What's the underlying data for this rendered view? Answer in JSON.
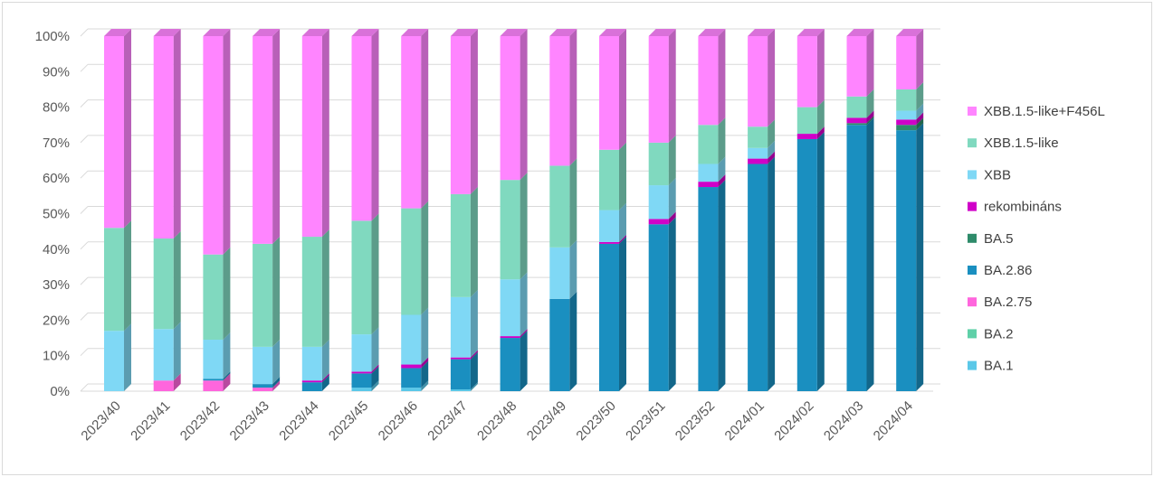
{
  "chart_data": {
    "type": "bar",
    "stacked": true,
    "percent_stacked": true,
    "style": "3d-column",
    "categories": [
      "2023/40",
      "2023/41",
      "2023/42",
      "2023/43",
      "2023/44",
      "2023/45",
      "2023/46",
      "2023/47",
      "2023/48",
      "2023/49",
      "2023/50",
      "2023/51",
      "2023/52",
      "2024/01",
      "2024/02",
      "2024/03",
      "2024/04"
    ],
    "y_ticks": [
      "0%",
      "10%",
      "20%",
      "30%",
      "40%",
      "50%",
      "60%",
      "70%",
      "80%",
      "90%",
      "100%"
    ],
    "ylim": [
      0,
      100
    ],
    "grid": true,
    "legend_position": "right",
    "series": [
      {
        "name": "BA.1",
        "color": "#5bc8e8",
        "values": [
          0,
          0,
          0,
          0,
          0,
          1,
          1,
          0.5,
          0,
          0,
          0,
          0,
          0,
          0,
          0,
          0,
          0
        ]
      },
      {
        "name": "BA.2",
        "color": "#5fd0a8",
        "values": [
          0,
          0,
          0,
          0,
          0,
          0,
          0,
          0,
          0,
          0,
          0,
          0,
          0,
          0,
          0,
          0,
          0
        ]
      },
      {
        "name": "BA.2.75",
        "color": "#ff66dd",
        "values": [
          0,
          3,
          3,
          1,
          0,
          0,
          0,
          0,
          0,
          0,
          0,
          0,
          0,
          0,
          0,
          0,
          0
        ]
      },
      {
        "name": "BA.2.86",
        "color": "#1a8fc0",
        "values": [
          0,
          0,
          0.5,
          1,
          2.5,
          4,
          5.5,
          8.5,
          15,
          26,
          41.5,
          47,
          57.5,
          64,
          71,
          75,
          73.5
        ]
      },
      {
        "name": "BA.5",
        "color": "#2e8b6a",
        "values": [
          0,
          0,
          0,
          0,
          0,
          0,
          0,
          0,
          0,
          0,
          0,
          0,
          0,
          0,
          0,
          0.5,
          1.5
        ]
      },
      {
        "name": "rekombináns",
        "color": "#d000c8",
        "values": [
          0,
          0,
          0,
          0,
          0.5,
          0.5,
          1,
          0.5,
          0.5,
          0,
          0.5,
          1.5,
          1.5,
          1.5,
          1.5,
          1.5,
          1.5
        ]
      },
      {
        "name": "XBB",
        "color": "#7fd8f5",
        "values": [
          17,
          14.5,
          11,
          10.5,
          9.5,
          10.5,
          14,
          17,
          16,
          14.5,
          9,
          9.5,
          5,
          3,
          0,
          0,
          2.5
        ]
      },
      {
        "name": "XBB.1.5-like",
        "color": "#80d9bf",
        "values": [
          29,
          25.5,
          24,
          29,
          31,
          32,
          30,
          29,
          28,
          23,
          17,
          12,
          11,
          6,
          7.5,
          6,
          6
        ]
      },
      {
        "name": "XBB.1.5-like+F456L",
        "color": "#ff85ff",
        "values": [
          54,
          57,
          61.5,
          58.5,
          56.5,
          52,
          48.5,
          44.5,
          40.5,
          36.5,
          32,
          30,
          25,
          25.5,
          20,
          17,
          15
        ]
      }
    ]
  }
}
